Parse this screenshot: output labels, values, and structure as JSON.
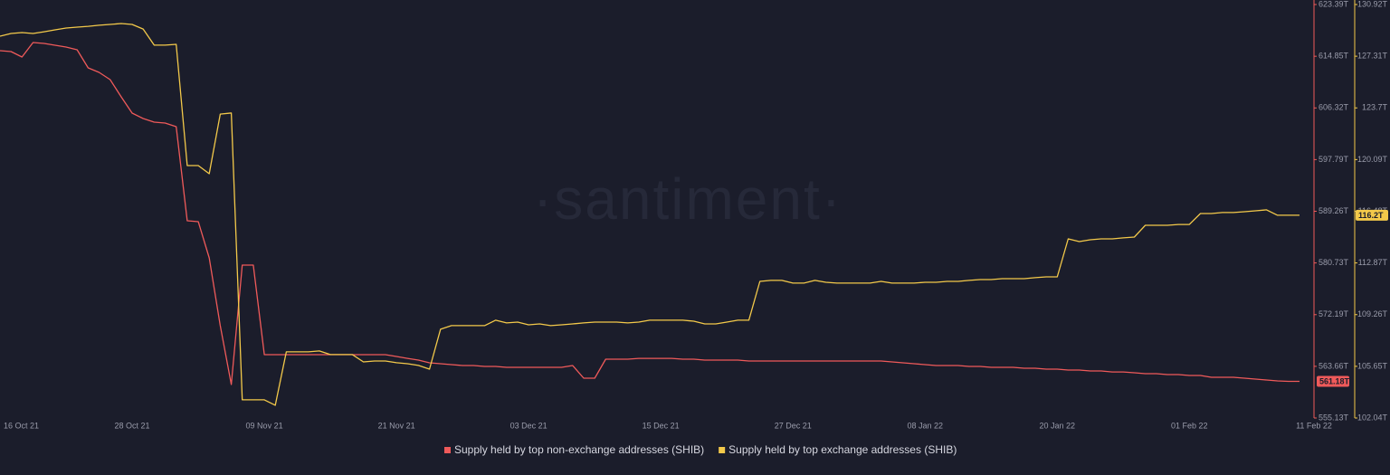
{
  "chart_data": {
    "type": "line",
    "watermark": "·santiment·",
    "x": [
      "16 Oct 21",
      "17 Oct 21",
      "18 Oct 21",
      "19 Oct 21",
      "20 Oct 21",
      "21 Oct 21",
      "22 Oct 21",
      "23 Oct 21",
      "24 Oct 21",
      "25 Oct 21",
      "26 Oct 21",
      "27 Oct 21",
      "28 Oct 21",
      "29 Oct 21",
      "30 Oct 21",
      "31 Oct 21",
      "01 Nov 21",
      "02 Nov 21",
      "03 Nov 21",
      "04 Nov 21",
      "05 Nov 21",
      "06 Nov 21",
      "07 Nov 21",
      "08 Nov 21",
      "09 Nov 21",
      "10 Nov 21",
      "11 Nov 21",
      "12 Nov 21",
      "13 Nov 21",
      "14 Nov 21",
      "15 Nov 21",
      "16 Nov 21",
      "17 Nov 21",
      "18 Nov 21",
      "19 Nov 21",
      "20 Nov 21",
      "21 Nov 21",
      "22 Nov 21",
      "23 Nov 21",
      "24 Nov 21",
      "25 Nov 21",
      "26 Nov 21",
      "27 Nov 21",
      "28 Nov 21",
      "29 Nov 21",
      "30 Nov 21",
      "01 Dec 21",
      "02 Dec 21",
      "03 Dec 21",
      "04 Dec 21",
      "05 Dec 21",
      "06 Dec 21",
      "07 Dec 21",
      "08 Dec 21",
      "09 Dec 21",
      "10 Dec 21",
      "11 Dec 21",
      "12 Dec 21",
      "13 Dec 21",
      "14 Dec 21",
      "15 Dec 21",
      "16 Dec 21",
      "17 Dec 21",
      "18 Dec 21",
      "19 Dec 21",
      "20 Dec 21",
      "21 Dec 21",
      "22 Dec 21",
      "23 Dec 21",
      "24 Dec 21",
      "25 Dec 21",
      "26 Dec 21",
      "27 Dec 21",
      "28 Dec 21",
      "29 Dec 21",
      "30 Dec 21",
      "31 Dec 21",
      "01 Jan 22",
      "02 Jan 22",
      "03 Jan 22",
      "04 Jan 22",
      "05 Jan 22",
      "06 Jan 22",
      "07 Jan 22",
      "08 Jan 22",
      "09 Jan 22",
      "10 Jan 22",
      "11 Jan 22",
      "12 Jan 22",
      "13 Jan 22",
      "14 Jan 22",
      "15 Jan 22",
      "16 Jan 22",
      "17 Jan 22",
      "18 Jan 22",
      "19 Jan 22",
      "20 Jan 22",
      "21 Jan 22",
      "22 Jan 22",
      "23 Jan 22",
      "24 Jan 22",
      "25 Jan 22",
      "26 Jan 22",
      "27 Jan 22",
      "28 Jan 22",
      "29 Jan 22",
      "30 Jan 22",
      "31 Jan 22",
      "01 Feb 22",
      "02 Feb 22",
      "03 Feb 22",
      "04 Feb 22",
      "05 Feb 22",
      "06 Feb 22",
      "07 Feb 22",
      "08 Feb 22",
      "09 Feb 22",
      "10 Feb 22",
      "11 Feb 22"
    ],
    "xticks": [
      "16 Oct 21",
      "28 Oct 21",
      "09 Nov 21",
      "21 Nov 21",
      "03 Dec 21",
      "15 Dec 21",
      "27 Dec 21",
      "08 Jan 22",
      "20 Jan 22",
      "01 Feb 22",
      "11 Feb 22"
    ],
    "ylim": [
      555.13,
      623.39
    ],
    "yticks": [
      {
        "value": 555.13,
        "label": "555.13T"
      },
      {
        "value": 563.66,
        "label": "563.66T"
      },
      {
        "value": 572.19,
        "label": "572.19T"
      },
      {
        "value": 580.73,
        "label": "580.73T"
      },
      {
        "value": 589.26,
        "label": "589.26T"
      },
      {
        "value": 597.79,
        "label": "597.79T"
      },
      {
        "value": 606.32,
        "label": "606.32T"
      },
      {
        "value": 614.85,
        "label": "614.85T"
      },
      {
        "value": 623.39,
        "label": "623.39T"
      }
    ],
    "y2lim": [
      102.04,
      130.92
    ],
    "y2ticks": [
      {
        "value": 102.04,
        "label": "102.04T"
      },
      {
        "value": 105.65,
        "label": "105.65T"
      },
      {
        "value": 109.26,
        "label": "109.26T"
      },
      {
        "value": 112.87,
        "label": "112.87T"
      },
      {
        "value": 116.48,
        "label": "116.48T"
      },
      {
        "value": 120.09,
        "label": "120.09T"
      },
      {
        "value": 123.7,
        "label": "123.7T"
      },
      {
        "value": 127.31,
        "label": "127.31T"
      },
      {
        "value": 130.92,
        "label": "130.92T"
      }
    ],
    "series": [
      {
        "name": "Supply held by top non-exchange addresses (SHIB)",
        "color": "#ef5a5a",
        "axis": "y",
        "last_label": "561.18T",
        "values": [
          615.77,
          615.62,
          614.73,
          617.12,
          616.97,
          616.67,
          616.37,
          615.92,
          612.93,
          612.19,
          610.99,
          608.15,
          605.47,
          604.57,
          603.97,
          603.82,
          603.23,
          587.69,
          587.54,
          581.57,
          570.36,
          560.66,
          580.37,
          580.37,
          565.58,
          565.58,
          565.58,
          565.58,
          565.58,
          565.58,
          565.58,
          565.58,
          565.58,
          565.58,
          565.58,
          565.58,
          565.28,
          564.98,
          564.69,
          564.24,
          564.09,
          563.94,
          563.79,
          563.79,
          563.64,
          563.64,
          563.49,
          563.49,
          563.49,
          563.49,
          563.49,
          563.49,
          563.79,
          561.7,
          561.7,
          564.84,
          564.84,
          564.84,
          564.98,
          564.98,
          564.98,
          564.98,
          564.84,
          564.84,
          564.69,
          564.69,
          564.69,
          564.69,
          564.54,
          564.54,
          564.54,
          564.54,
          564.54,
          564.54,
          564.54,
          564.54,
          564.54,
          564.54,
          564.54,
          564.54,
          564.54,
          564.39,
          564.24,
          564.09,
          563.94,
          563.79,
          563.79,
          563.79,
          563.64,
          563.64,
          563.49,
          563.49,
          563.49,
          563.34,
          563.34,
          563.19,
          563.19,
          563.04,
          563.04,
          562.89,
          562.89,
          562.74,
          562.74,
          562.6,
          562.45,
          562.45,
          562.3,
          562.3,
          562.15,
          562.15,
          561.85,
          561.85,
          561.85,
          561.7,
          561.55,
          561.4,
          561.25,
          561.18,
          561.18
        ]
      },
      {
        "name": "Supply held by top exchange addresses (SHIB)",
        "color": "#f3c94a",
        "axis": "y2",
        "last_label": "116.2T",
        "values": [
          128.71,
          128.9,
          128.96,
          128.9,
          129.02,
          129.15,
          129.28,
          129.34,
          129.4,
          129.47,
          129.53,
          129.59,
          129.53,
          129.21,
          128.08,
          128.08,
          128.14,
          119.67,
          119.67,
          119.1,
          123.27,
          123.34,
          103.31,
          103.31,
          103.31,
          102.93,
          106.66,
          106.66,
          106.66,
          106.72,
          106.47,
          106.47,
          106.47,
          105.96,
          106.02,
          106.02,
          105.9,
          105.83,
          105.71,
          105.45,
          108.24,
          108.49,
          108.49,
          108.49,
          108.49,
          108.87,
          108.68,
          108.74,
          108.55,
          108.61,
          108.49,
          108.55,
          108.61,
          108.68,
          108.74,
          108.74,
          108.74,
          108.68,
          108.74,
          108.87,
          108.87,
          108.87,
          108.87,
          108.8,
          108.61,
          108.61,
          108.74,
          108.87,
          108.87,
          111.58,
          111.65,
          111.65,
          111.46,
          111.46,
          111.65,
          111.52,
          111.46,
          111.46,
          111.46,
          111.46,
          111.58,
          111.46,
          111.46,
          111.46,
          111.52,
          111.52,
          111.58,
          111.58,
          111.65,
          111.71,
          111.71,
          111.77,
          111.77,
          111.77,
          111.84,
          111.9,
          111.9,
          114.55,
          114.36,
          114.49,
          114.55,
          114.55,
          114.62,
          114.68,
          115.5,
          115.5,
          115.5,
          115.56,
          115.56,
          116.32,
          116.32,
          116.39,
          116.39,
          116.45,
          116.51,
          116.58,
          116.2,
          116.2,
          116.2
        ]
      }
    ]
  }
}
